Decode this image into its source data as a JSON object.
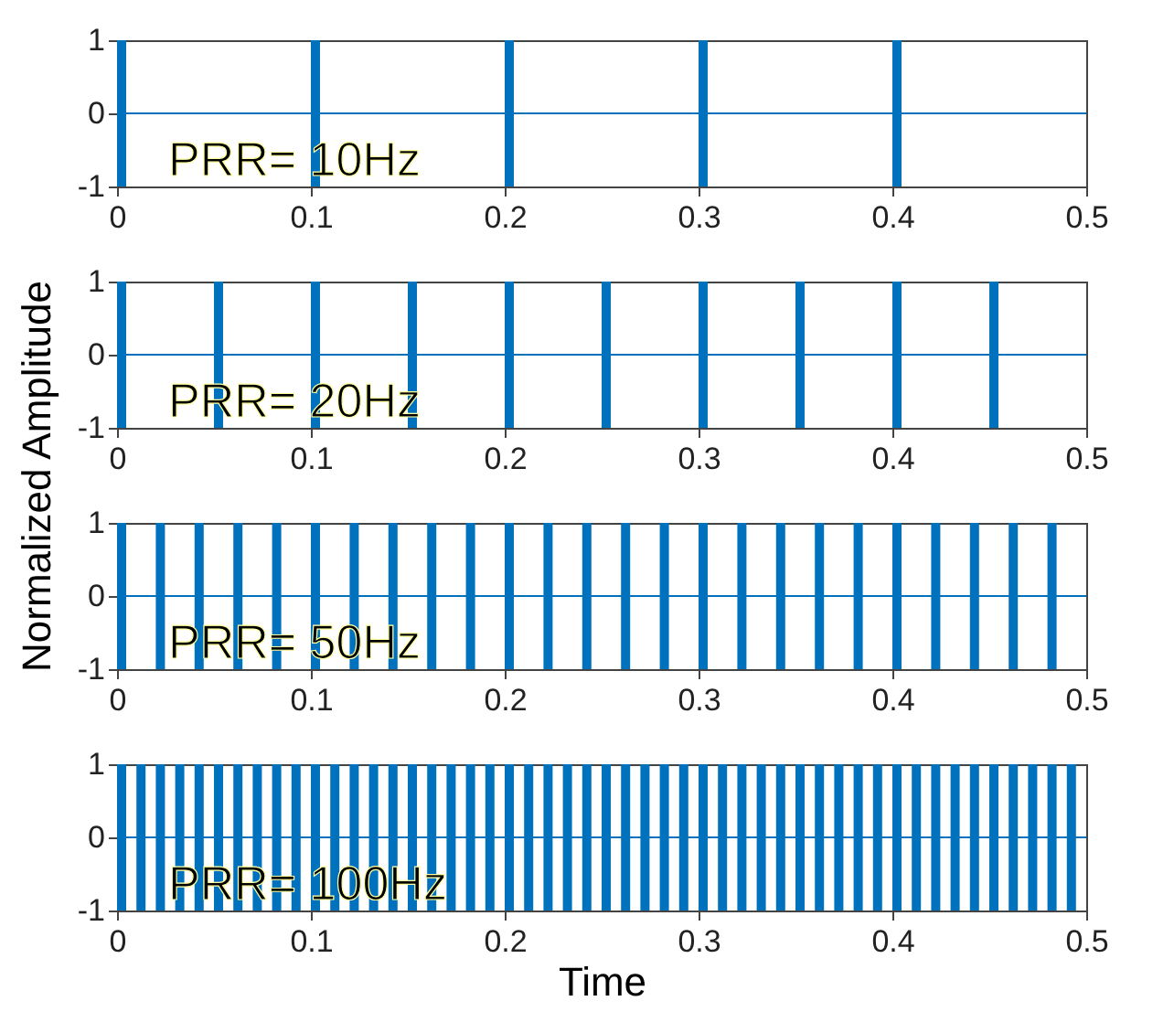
{
  "chart_data": [
    {
      "type": "bar",
      "x": [
        0,
        0.1,
        0.2,
        0.3,
        0.4
      ],
      "base": [
        -1,
        -1,
        -1,
        -1,
        -1
      ],
      "values": [
        2,
        2,
        2,
        2,
        2
      ],
      "color": "#0072bd",
      "xlim": [
        0,
        0.5
      ],
      "xticks": [
        0,
        0.1,
        0.2,
        0.3,
        0.4,
        0.5
      ],
      "ylim": [
        -1,
        1
      ],
      "yticks": [
        -1,
        0,
        1
      ],
      "ref_lines": [
        {
          "axis": "y",
          "value": 0,
          "color": "#0072bd"
        }
      ],
      "annotations": [
        "PRR= 10Hz"
      ]
    },
    {
      "type": "bar",
      "x": [
        0,
        0.05,
        0.1,
        0.15,
        0.2,
        0.25,
        0.3,
        0.35,
        0.4,
        0.45
      ],
      "base": [
        -1,
        -1,
        -1,
        -1,
        -1,
        -1,
        -1,
        -1,
        -1,
        -1
      ],
      "values": [
        2,
        2,
        2,
        2,
        2,
        2,
        2,
        2,
        2,
        2
      ],
      "color": "#0072bd",
      "xlim": [
        0,
        0.5
      ],
      "xticks": [
        0,
        0.1,
        0.2,
        0.3,
        0.4,
        0.5
      ],
      "ylim": [
        -1,
        1
      ],
      "yticks": [
        -1,
        0,
        1
      ],
      "ylabel": "Normalized Amplitude",
      "ref_lines": [
        {
          "axis": "y",
          "value": 0,
          "color": "#0072bd"
        }
      ],
      "annotations": [
        "PRR= 20Hz"
      ]
    },
    {
      "type": "bar",
      "x": [
        0,
        0.02,
        0.04,
        0.06,
        0.08,
        0.1,
        0.12,
        0.14,
        0.16,
        0.18,
        0.2,
        0.22,
        0.24,
        0.26,
        0.28,
        0.3,
        0.32,
        0.34,
        0.36,
        0.38,
        0.4,
        0.42,
        0.44,
        0.46,
        0.48
      ],
      "base": [
        -1,
        -1,
        -1,
        -1,
        -1,
        -1,
        -1,
        -1,
        -1,
        -1,
        -1,
        -1,
        -1,
        -1,
        -1,
        -1,
        -1,
        -1,
        -1,
        -1,
        -1,
        -1,
        -1,
        -1,
        -1
      ],
      "values": [
        2,
        2,
        2,
        2,
        2,
        2,
        2,
        2,
        2,
        2,
        2,
        2,
        2,
        2,
        2,
        2,
        2,
        2,
        2,
        2,
        2,
        2,
        2,
        2,
        2
      ],
      "color": "#0072bd",
      "xlim": [
        0,
        0.5
      ],
      "xticks": [
        0,
        0.1,
        0.2,
        0.3,
        0.4,
        0.5
      ],
      "ylim": [
        -1,
        1
      ],
      "yticks": [
        -1,
        0,
        1
      ],
      "ref_lines": [
        {
          "axis": "y",
          "value": 0,
          "color": "#0072bd"
        }
      ],
      "annotations": [
        "PRR= 50Hz"
      ]
    },
    {
      "type": "bar",
      "x": [
        0,
        0.01,
        0.02,
        0.03,
        0.04,
        0.05,
        0.06,
        0.07,
        0.08,
        0.09,
        0.1,
        0.11,
        0.12,
        0.13,
        0.14,
        0.15,
        0.16,
        0.17,
        0.18,
        0.19,
        0.2,
        0.21,
        0.22,
        0.23,
        0.24,
        0.25,
        0.26,
        0.27,
        0.28,
        0.29,
        0.3,
        0.31,
        0.32,
        0.33,
        0.34,
        0.35,
        0.36,
        0.37,
        0.38,
        0.39,
        0.4,
        0.41,
        0.42,
        0.43,
        0.44,
        0.45,
        0.46,
        0.47,
        0.48,
        0.49
      ],
      "base": [
        -1,
        -1,
        -1,
        -1,
        -1,
        -1,
        -1,
        -1,
        -1,
        -1,
        -1,
        -1,
        -1,
        -1,
        -1,
        -1,
        -1,
        -1,
        -1,
        -1,
        -1,
        -1,
        -1,
        -1,
        -1,
        -1,
        -1,
        -1,
        -1,
        -1,
        -1,
        -1,
        -1,
        -1,
        -1,
        -1,
        -1,
        -1,
        -1,
        -1,
        -1,
        -1,
        -1,
        -1,
        -1,
        -1,
        -1,
        -1,
        -1,
        -1
      ],
      "values": [
        2,
        2,
        2,
        2,
        2,
        2,
        2,
        2,
        2,
        2,
        2,
        2,
        2,
        2,
        2,
        2,
        2,
        2,
        2,
        2,
        2,
        2,
        2,
        2,
        2,
        2,
        2,
        2,
        2,
        2,
        2,
        2,
        2,
        2,
        2,
        2,
        2,
        2,
        2,
        2,
        2,
        2,
        2,
        2,
        2,
        2,
        2,
        2,
        2,
        2
      ],
      "color": "#0072bd",
      "xlim": [
        0,
        0.5
      ],
      "xticks": [
        0,
        0.1,
        0.2,
        0.3,
        0.4,
        0.5
      ],
      "ylim": [
        -1,
        1
      ],
      "yticks": [
        -1,
        0,
        1
      ],
      "xlabel": "Time",
      "ref_lines": [
        {
          "axis": "y",
          "value": 0,
          "color": "#0072bd"
        }
      ],
      "annotations": [
        "PRR= 100Hz"
      ]
    }
  ]
}
